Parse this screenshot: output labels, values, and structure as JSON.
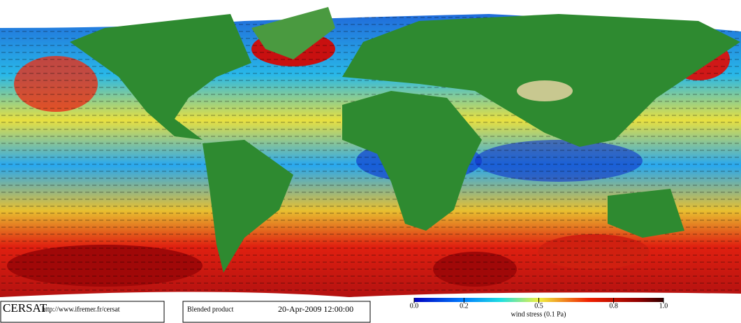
{
  "logo": "CERSAT",
  "url": "http://www.ifremer.fr/cersat",
  "product": "Blended product",
  "date": "20-Apr-2009 12:00:00",
  "colorbar": {
    "label": "wind stress (0.1 Pa)",
    "lim": [
      0,
      1
    ],
    "ticks": [
      {
        "value": 0,
        "label": "0.0"
      },
      0.2,
      0.5,
      0.8,
      {
        "value": 1,
        "label": "1.0"
      }
    ]
  }
}
